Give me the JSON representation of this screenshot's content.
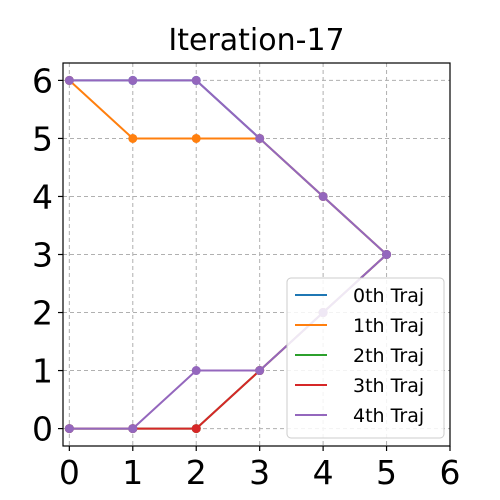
{
  "chart_data": {
    "type": "line",
    "title": "Iteration-17",
    "xlabel": "",
    "ylabel": "",
    "xlim": [
      -0.1,
      6
    ],
    "ylim": [
      -0.3,
      6.3
    ],
    "xticks": [
      "0",
      "1",
      "2",
      "3",
      "4",
      "5",
      "6"
    ],
    "yticks": [
      "0",
      "1",
      "2",
      "3",
      "4",
      "5",
      "6"
    ],
    "grid": true,
    "legend_position": "bottom-right",
    "series": [
      {
        "name": "0th Traj",
        "color": "#1f77b4",
        "x": [
          0,
          1,
          2,
          3,
          4,
          5
        ],
        "y": [
          6,
          6,
          6,
          5,
          4,
          3
        ]
      },
      {
        "name": "1th Traj",
        "color": "#ff7f0e",
        "x": [
          0,
          1,
          2,
          3,
          4,
          5
        ],
        "y": [
          6,
          5,
          5,
          5,
          4,
          3
        ]
      },
      {
        "name": "2th Traj",
        "color": "#2ca02c",
        "x": [
          0,
          1,
          2,
          3,
          4,
          5
        ],
        "y": [
          0,
          0,
          0,
          1,
          2,
          3
        ]
      },
      {
        "name": "3th Traj",
        "color": "#d62728",
        "x": [
          0,
          1,
          2,
          3,
          4,
          5
        ],
        "y": [
          0,
          0,
          0,
          1,
          2,
          3
        ]
      },
      {
        "name": "4th Traj",
        "color": "#9467bd",
        "x": [
          0,
          1,
          2,
          3,
          4,
          5
        ],
        "y": [
          6,
          6,
          6,
          5,
          4,
          3
        ]
      },
      {
        "name": "",
        "color": "#9467bd",
        "x": [
          0,
          1,
          2,
          3,
          4,
          5
        ],
        "y": [
          0,
          0,
          1,
          1,
          2,
          3
        ]
      }
    ]
  }
}
